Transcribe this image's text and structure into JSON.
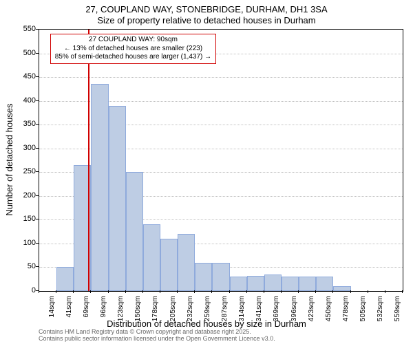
{
  "title_line1": "27, COUPLAND WAY, STONEBRIDGE, DURHAM, DH1 3SA",
  "title_line2": "Size of property relative to detached houses in Durham",
  "ylabel": "Number of detached houses",
  "xlabel": "Distribution of detached houses by size in Durham",
  "footnote_line1": "Contains HM Land Registry data © Crown copyright and database right 2025.",
  "footnote_line2": "Contains public sector information licensed under the Open Government Licence v3.0.",
  "annotation": {
    "line1": "27 COUPLAND WAY: 90sqm",
    "line2": "← 13% of detached houses are smaller (223)",
    "line3": "85% of semi-detached houses are larger (1,437) →"
  },
  "chart": {
    "type": "histogram",
    "ylim": [
      0,
      550
    ],
    "ytick_step": 50,
    "background_color": "#ffffff",
    "grid_color": "#bfbfbf",
    "bar_fill": "#becde4",
    "bar_border": "#8faadc",
    "marker_color": "#d00000",
    "marker_value": 90,
    "x_start": 14,
    "x_bin_width": 27,
    "x_tick_labels": [
      "14sqm",
      "41sqm",
      "69sqm",
      "96sqm",
      "123sqm",
      "150sqm",
      "178sqm",
      "205sqm",
      "232sqm",
      "259sqm",
      "287sqm",
      "314sqm",
      "341sqm",
      "369sqm",
      "396sqm",
      "423sqm",
      "450sqm",
      "478sqm",
      "505sqm",
      "532sqm",
      "559sqm"
    ],
    "bar_values": [
      0,
      50,
      265,
      435,
      390,
      250,
      140,
      110,
      120,
      60,
      60,
      30,
      32,
      35,
      30,
      30,
      30,
      10,
      0,
      0,
      0
    ],
    "title_fontsize": 13,
    "label_fontsize": 13,
    "tick_fontsize": 11,
    "footnote_fontsize": 9,
    "footnote_color": "#666666"
  }
}
